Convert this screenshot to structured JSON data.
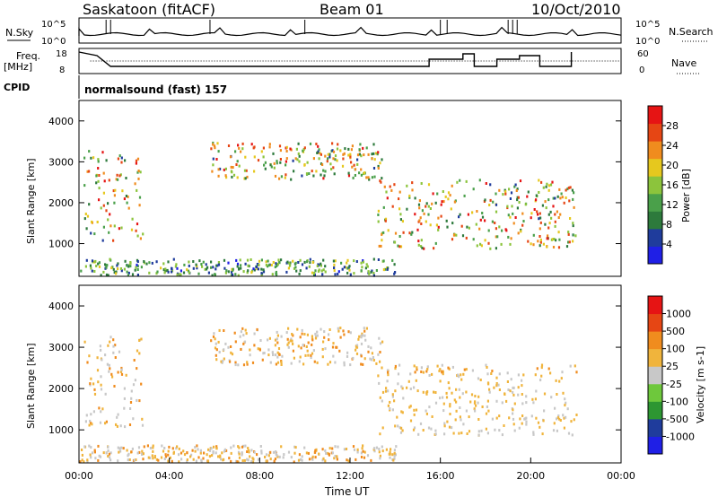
{
  "header": {
    "station": "Saskatoon (fitACF)",
    "beam": "Beam 01",
    "date": "10/Oct/2010"
  },
  "nsky_panel": {
    "left_label": "N.Sky",
    "left_ticks": [
      "10^5",
      "10^0"
    ],
    "right_ticks": [
      "10^5",
      "10^0"
    ],
    "right_label": "N.Search"
  },
  "freq_panel": {
    "left_label_1": "Freq.",
    "left_label_2": "[MHz]",
    "left_ticks": [
      "18",
      "8"
    ],
    "right_ticks": [
      "60",
      "0"
    ],
    "right_label": "Nave"
  },
  "cpid": {
    "label": "CPID",
    "value": "normalsound (fast) 157"
  },
  "colors": {
    "power_scale": [
      "#1f1fe6",
      "#1f3c9c",
      "#2d7a3c",
      "#4aa04a",
      "#8cc43c",
      "#e6c81e",
      "#f08c1e",
      "#e64614",
      "#e61414"
    ],
    "velocity_scale": [
      "#e61414",
      "#e64614",
      "#f08c1e",
      "#f0b43c",
      "#c8c8c8",
      "#6ec83c",
      "#2d9632",
      "#1f3c9c",
      "#1f1fe6"
    ]
  },
  "chart_data": [
    {
      "type": "heatmap",
      "name": "power",
      "ylabel": "Slant Range [km]",
      "yticks": [
        "1000",
        "2000",
        "3000",
        "4000"
      ],
      "ylim": [
        200,
        4500
      ],
      "xlim": [
        0,
        24
      ],
      "colorbar_label": "Power [dB]",
      "colorbar_ticks": [
        "4",
        "8",
        "12",
        "16",
        "20",
        "24",
        "28"
      ],
      "value_range": [
        0,
        30
      ]
    },
    {
      "type": "heatmap",
      "name": "velocity",
      "ylabel": "Slant Range [km]",
      "yticks": [
        "1000",
        "2000",
        "3000",
        "4000"
      ],
      "ylim": [
        200,
        4500
      ],
      "xlim": [
        0,
        24
      ],
      "colorbar_label": "Velocity [m s-1]",
      "colorbar_ticks": [
        "1000",
        "500",
        "100",
        "25",
        "-25",
        "-100",
        "-500",
        "-1000"
      ]
    }
  ],
  "time_axis": {
    "xlabel": "Time UT",
    "ticks": [
      "00:00",
      "04:00",
      "08:00",
      "12:00",
      "16:00",
      "20:00",
      "00:00"
    ]
  }
}
